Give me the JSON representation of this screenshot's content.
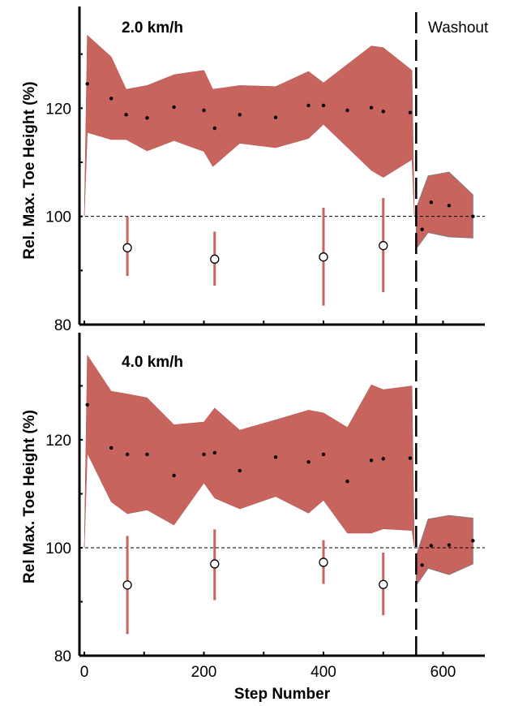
{
  "chart_data": {
    "type": "line",
    "xlabel": "Step Number",
    "ylabel_top": "Rel. Max. Toe Height (%)",
    "ylabel_bottom": "Rel Max. Toe Height (%)",
    "xlim": [
      -5,
      660
    ],
    "xticks": [
      0,
      200,
      400,
      600
    ],
    "ylim": [
      80,
      140
    ],
    "yticks": [
      80,
      100,
      120
    ],
    "reference_y": 100,
    "washout_x": 555,
    "annotation": "Washout",
    "colors": {
      "band": "#c8645e",
      "bar": "#c8645e",
      "dot": "#000000",
      "circle": "#000000"
    },
    "panels": [
      {
        "title": "2.0 km/h",
        "band": {
          "x": [
            0,
            5,
            45,
            70,
            105,
            150,
            200,
            215,
            260,
            320,
            375,
            400,
            480,
            500,
            548,
            552
          ],
          "upper": [
            100,
            133.5,
            129.5,
            123.5,
            124.2,
            126.2,
            127,
            123.5,
            124.2,
            124,
            126.8,
            124.7,
            131.5,
            131.2,
            127,
            100
          ],
          "lower": [
            100,
            115.5,
            114.2,
            114.2,
            112.1,
            114,
            112,
            109.2,
            113.5,
            112.7,
            114.4,
            117,
            108.5,
            107.2,
            110.5,
            100
          ]
        },
        "dots": {
          "x": [
            5,
            45,
            70,
            105,
            150,
            200,
            218,
            260,
            320,
            375,
            400,
            440,
            480,
            500,
            545
          ],
          "y": [
            124.5,
            121.8,
            118.8,
            118.2,
            120.2,
            119.6,
            116.3,
            118.8,
            118.3,
            120.5,
            120.5,
            119.6,
            120.1,
            119.4,
            119.2
          ]
        },
        "washout_band": {
          "x": [
            555,
            575,
            610,
            650
          ],
          "upper": [
            101.5,
            107.5,
            108.2,
            104
          ],
          "lower": [
            94,
            97,
            96.2,
            96
          ]
        },
        "washout_dots": {
          "x": [
            565,
            580,
            610,
            650
          ],
          "y": [
            97.6,
            102.6,
            102,
            100
          ]
        },
        "bars": {
          "x": [
            72,
            218,
            400,
            500
          ],
          "mean": [
            94.2,
            92.1,
            92.5,
            94.6
          ],
          "lower": [
            89,
            87.2,
            83.5,
            86
          ],
          "upper": [
            100,
            97.2,
            101.6,
            103.4
          ]
        }
      },
      {
        "title": "4.0 km/h",
        "band": {
          "x": [
            0,
            5,
            45,
            72,
            105,
            150,
            200,
            218,
            260,
            320,
            375,
            400,
            440,
            480,
            500,
            548,
            552
          ],
          "upper": [
            100,
            135.7,
            129,
            128.5,
            127.8,
            122.8,
            123.3,
            125.9,
            121.8,
            123.7,
            125.5,
            125,
            122.3,
            130.2,
            129.3,
            130,
            100
          ],
          "lower": [
            100,
            117.5,
            108.5,
            106.3,
            107,
            104.2,
            112,
            109.2,
            107.2,
            109.5,
            106.4,
            108.8,
            102.7,
            102.7,
            103.5,
            103.2,
            100
          ]
        },
        "dots": {
          "x": [
            5,
            45,
            72,
            105,
            150,
            200,
            218,
            260,
            320,
            375,
            400,
            440,
            480,
            500,
            545
          ],
          "y": [
            126.5,
            118.5,
            117.3,
            117.3,
            113.4,
            117.3,
            117.6,
            114.3,
            116.8,
            115.9,
            117.3,
            112.3,
            116.2,
            116.5,
            116.6
          ]
        },
        "washout_band": {
          "x": [
            555,
            575,
            610,
            650
          ],
          "upper": [
            98.5,
            105.3,
            106,
            105.5
          ],
          "lower": [
            93,
            96.2,
            95,
            97
          ]
        },
        "washout_dots": {
          "x": [
            565,
            580,
            610,
            650
          ],
          "y": [
            96.8,
            100.4,
            100.5,
            101.3
          ]
        },
        "bars": {
          "x": [
            72,
            218,
            400,
            500
          ],
          "mean": [
            93.1,
            97,
            97.3,
            93.2
          ],
          "lower": [
            84,
            90.3,
            93.3,
            87.5
          ],
          "upper": [
            102.2,
            103.4,
            101.4,
            99.1
          ]
        }
      }
    ]
  }
}
